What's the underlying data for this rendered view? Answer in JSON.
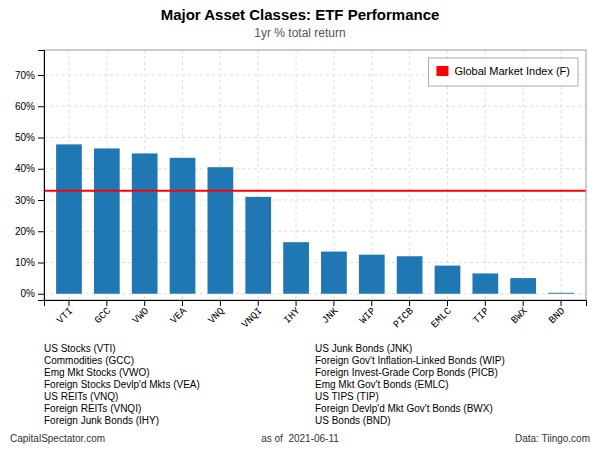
{
  "chart_data": {
    "type": "bar",
    "title": "Major Asset Classes: ETF Performance",
    "subtitle": "1yr % total return",
    "categories": [
      "VTI",
      "GCC",
      "VWO",
      "VEA",
      "VNQ",
      "VNQI",
      "IHY",
      "JNK",
      "WIP",
      "PICB",
      "EMLC",
      "TIP",
      "BWX",
      "BND"
    ],
    "values": [
      47.8,
      46.5,
      44.9,
      43.5,
      40.5,
      31.0,
      16.5,
      13.5,
      12.5,
      12.0,
      9.0,
      6.5,
      5.0,
      0.3
    ],
    "ylim": [
      -2,
      78
    ],
    "yticks": [
      {
        "value": 0,
        "label": "0%"
      },
      {
        "value": 10,
        "label": "10%"
      },
      {
        "value": 20,
        "label": "20%"
      },
      {
        "value": 30,
        "label": "30%"
      },
      {
        "value": 40,
        "label": "40%"
      },
      {
        "value": 50,
        "label": "50%"
      },
      {
        "value": 60,
        "label": "60%"
      },
      {
        "value": 70,
        "label": "70%"
      }
    ],
    "grid": true,
    "reference_lines": [
      {
        "name": "Global Market Index (F)",
        "value": 33.0,
        "color": "#ff0000"
      }
    ],
    "legend": "upper right",
    "annotations": [
      [
        "US Stocks (VTI)",
        "Commodities (GCC)",
        "Emg Mkt Stocks (VWO)",
        "Foreign Stocks Devlp'd Mkts (VEA)",
        "US REITs (VNQ)",
        "Foreign REITs (VNQI)",
        "Foreign Junk Bonds (IHY)"
      ],
      [
        "US Junk Bonds (JNK)",
        "Foreign Gov't Inflation-Linked Bonds (WIP)",
        "Foreign Invest-Grade Corp Bonds (PICB)",
        "Emg Mkt Gov't Bonds (EMLC)",
        "US TIPS (TIP)",
        "Foreign Devlp'd Mkt Gov't Bonds (BWX)",
        "US Bonds (BND)"
      ]
    ],
    "footer": [
      "CapitalSpectator.com",
      "as of  2021-06-11",
      "Data: Tiingo.com"
    ]
  }
}
